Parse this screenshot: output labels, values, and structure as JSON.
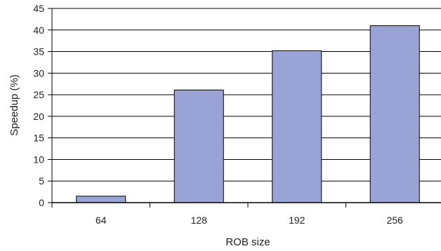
{
  "chart_data": {
    "type": "bar",
    "xlabel": "ROB size",
    "ylabel": "Speedup (%)",
    "categories": [
      "64",
      "128",
      "192",
      "256"
    ],
    "values": [
      1.5,
      26.1,
      35.2,
      41.0
    ],
    "ylim": [
      0,
      45
    ],
    "yticks": [
      "0",
      "5",
      "10",
      "15",
      "20",
      "25",
      "30",
      "35",
      "40",
      "45"
    ],
    "grid": true,
    "legend": "none",
    "bar_color": "#9aa3d6",
    "bar_edge_color": "#000000",
    "grid_color": "#000000"
  }
}
